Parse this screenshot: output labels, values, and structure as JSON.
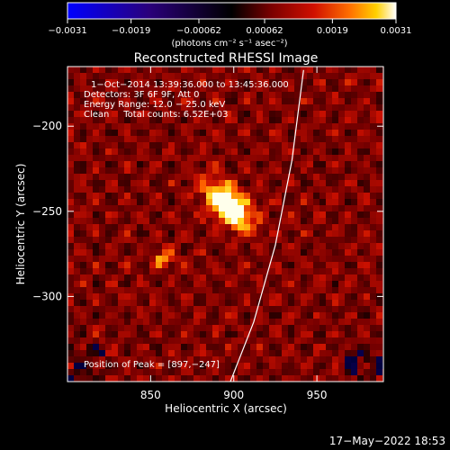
{
  "chart_data": {
    "type": "heatmap",
    "title": "Reconstructed RHESSI Image",
    "xlabel": "Heliocentric X (arcsec)",
    "ylabel": "Heliocentric Y (arcsec)",
    "xlim": [
      800,
      990
    ],
    "ylim": [
      -350,
      -165
    ],
    "x_ticks": [
      850,
      900,
      950
    ],
    "x_tick_labels": [
      "850",
      "900",
      "950"
    ],
    "y_ticks": [
      -200,
      -250,
      -300
    ],
    "y_tick_labels": [
      "−200",
      "−250",
      "−300"
    ],
    "colorbar": {
      "colormap": "RHESSI thermal (blue-black-red-yellow-white)",
      "range": [
        -0.0031,
        0.0031
      ],
      "ticks": [
        -0.0031,
        -0.0019,
        -0.00062,
        0.00062,
        0.0019,
        0.0031
      ],
      "tick_labels": [
        "−0.0031",
        "−0.0019",
        "−0.00062",
        "0.00062",
        "0.0019",
        "0.0031"
      ],
      "units": "(photons cm⁻² s⁻¹ asec⁻²)"
    },
    "annotations": [
      "1−Oct−2014 13:39:36.000 to 13:45:36.000",
      "Detectors: 3F 6F 9F, Att 0",
      "Energy Range: 12.0 − 25.0 keV",
      "Clean     Total counts: 6.52E+03"
    ],
    "peak_label": "Position of Peak = [897,−247]",
    "peak": {
      "x": 897,
      "y": -247
    },
    "secondary_sources": [
      {
        "x": 858,
        "y": -278
      }
    ],
    "limb_curve": {
      "x": [
        942,
        935,
        925,
        912,
        898
      ],
      "y": [
        -167,
        -220,
        -270,
        -315,
        -350
      ]
    }
  },
  "timestamp": "17−May−2022 18:53",
  "colors": {
    "background": "#000000",
    "text": "#ffffff",
    "limb": "#ffffff"
  }
}
